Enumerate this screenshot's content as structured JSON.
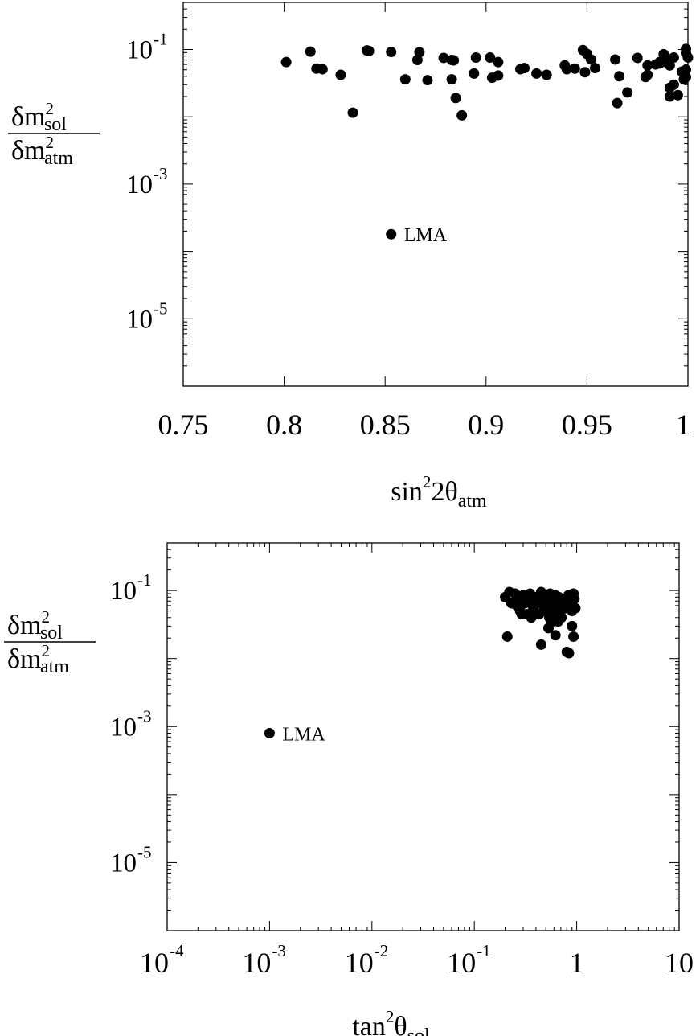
{
  "chart_data": [
    {
      "type": "scatter",
      "xlabel": "sin²2θ_atm",
      "xlabel_parts": {
        "base": "sin",
        "sup": "2",
        "mid": "2θ",
        "sub": "atm"
      },
      "ylabel": "δm²_sol / δm²_atm",
      "ylabel_parts": {
        "num_base": "δm",
        "num_sup": "2",
        "num_sub": "sol",
        "den_base": "δm",
        "den_sup": "2",
        "den_sub": "atm"
      },
      "xscale": "linear",
      "yscale": "log",
      "xlim": [
        0.75,
        1.0
      ],
      "ylim": [
        1e-06,
        0.5
      ],
      "x_ticks": [
        "0.75",
        "0.8",
        "0.85",
        "0.9",
        "0.95",
        "1"
      ],
      "y_ticks": [
        {
          "value": 0.1,
          "base": "10",
          "exp": "-1"
        },
        {
          "value": 0.001,
          "base": "10",
          "exp": "-3"
        },
        {
          "value": 1e-05,
          "base": "10",
          "exp": "-5"
        }
      ],
      "annotations": [
        {
          "text": "LMA",
          "x": 0.853,
          "y": 0.00018
        }
      ],
      "points": [
        [
          0.801,
          0.065
        ],
        [
          0.813,
          0.093
        ],
        [
          0.816,
          0.052
        ],
        [
          0.819,
          0.051
        ],
        [
          0.828,
          0.042
        ],
        [
          0.834,
          0.0115
        ],
        [
          0.841,
          0.097
        ],
        [
          0.842,
          0.095
        ],
        [
          0.853,
          0.092
        ],
        [
          0.86,
          0.036
        ],
        [
          0.866,
          0.07
        ],
        [
          0.867,
          0.091
        ],
        [
          0.871,
          0.035
        ],
        [
          0.879,
          0.075
        ],
        [
          0.883,
          0.07
        ],
        [
          0.883,
          0.036
        ],
        [
          0.884,
          0.069
        ],
        [
          0.885,
          0.019
        ],
        [
          0.888,
          0.0105
        ],
        [
          0.894,
          0.044
        ],
        [
          0.895,
          0.076
        ],
        [
          0.902,
          0.076
        ],
        [
          0.903,
          0.038
        ],
        [
          0.906,
          0.065
        ],
        [
          0.906,
          0.041
        ],
        [
          0.917,
          0.051
        ],
        [
          0.919,
          0.053
        ],
        [
          0.925,
          0.044
        ],
        [
          0.93,
          0.042
        ],
        [
          0.939,
          0.058
        ],
        [
          0.94,
          0.051
        ],
        [
          0.944,
          0.052
        ],
        [
          0.948,
          0.098
        ],
        [
          0.949,
          0.046
        ],
        [
          0.95,
          0.086
        ],
        [
          0.952,
          0.071
        ],
        [
          0.954,
          0.053
        ],
        [
          0.964,
          0.071
        ],
        [
          0.965,
          0.016
        ],
        [
          0.966,
          0.04
        ],
        [
          0.97,
          0.023
        ],
        [
          0.975,
          0.075
        ],
        [
          0.979,
          0.039
        ],
        [
          0.98,
          0.042
        ],
        [
          0.98,
          0.058
        ],
        [
          0.984,
          0.06
        ],
        [
          0.986,
          0.065
        ],
        [
          0.986,
          0.062
        ],
        [
          0.988,
          0.085
        ],
        [
          0.989,
          0.074
        ],
        [
          0.99,
          0.063
        ],
        [
          0.99,
          0.07
        ],
        [
          0.991,
          0.058
        ],
        [
          0.991,
          0.027
        ],
        [
          0.991,
          0.02
        ],
        [
          0.993,
          0.03
        ],
        [
          0.993,
          0.076
        ],
        [
          0.995,
          0.021
        ],
        [
          0.997,
          0.047
        ],
        [
          0.998,
          0.036
        ],
        [
          0.999,
          0.102
        ],
        [
          0.999,
          0.088
        ],
        [
          0.999,
          0.039
        ],
        [
          0.999,
          0.05
        ],
        [
          1.0,
          0.076
        ],
        [
          0.853,
          0.00018
        ]
      ]
    },
    {
      "type": "scatter",
      "xlabel": "tan²θ_sol",
      "xlabel_parts": {
        "base": "tan",
        "sup": "2",
        "mid": "θ",
        "sub": "sol"
      },
      "ylabel": "δm²_sol / δm²_atm",
      "ylabel_parts": {
        "num_base": "δm",
        "num_sup": "2",
        "num_sub": "sol",
        "den_base": "δm",
        "den_sup": "2",
        "den_sub": "atm"
      },
      "xscale": "log",
      "yscale": "log",
      "xlim": [
        0.0001,
        10
      ],
      "ylim": [
        1e-06,
        0.5
      ],
      "x_ticks": [
        {
          "value": 0.0001,
          "base": "10",
          "exp": "-4"
        },
        {
          "value": 0.001,
          "base": "10",
          "exp": "-3"
        },
        {
          "value": 0.01,
          "base": "10",
          "exp": "-2"
        },
        {
          "value": 0.1,
          "base": "10",
          "exp": "-1"
        },
        {
          "value": 1,
          "base": "1",
          "exp": ""
        },
        {
          "value": 10,
          "base": "10",
          "exp": ""
        }
      ],
      "y_ticks": [
        {
          "value": 0.1,
          "base": "10",
          "exp": "-1"
        },
        {
          "value": 0.001,
          "base": "10",
          "exp": "-3"
        },
        {
          "value": 1e-05,
          "base": "10",
          "exp": "-5"
        }
      ],
      "annotations": [
        {
          "text": "LMA",
          "x": 0.001,
          "y": 0.0008
        }
      ],
      "points": [
        [
          0.2,
          0.08
        ],
        [
          0.22,
          0.095
        ],
        [
          0.23,
          0.065
        ],
        [
          0.25,
          0.09
        ],
        [
          0.26,
          0.06
        ],
        [
          0.27,
          0.075
        ],
        [
          0.28,
          0.05
        ],
        [
          0.3,
          0.085
        ],
        [
          0.31,
          0.065
        ],
        [
          0.33,
          0.045
        ],
        [
          0.34,
          0.075
        ],
        [
          0.35,
          0.09
        ],
        [
          0.37,
          0.06
        ],
        [
          0.38,
          0.05
        ],
        [
          0.4,
          0.08
        ],
        [
          0.42,
          0.07
        ],
        [
          0.43,
          0.045
        ],
        [
          0.45,
          0.095
        ],
        [
          0.47,
          0.06
        ],
        [
          0.48,
          0.085
        ],
        [
          0.5,
          0.05
        ],
        [
          0.52,
          0.07
        ],
        [
          0.54,
          0.04
        ],
        [
          0.55,
          0.09
        ],
        [
          0.57,
          0.06
        ],
        [
          0.58,
          0.075
        ],
        [
          0.6,
          0.045
        ],
        [
          0.62,
          0.085
        ],
        [
          0.63,
          0.055
        ],
        [
          0.65,
          0.07
        ],
        [
          0.67,
          0.08
        ],
        [
          0.7,
          0.05
        ],
        [
          0.72,
          0.065
        ],
        [
          0.75,
          0.075
        ],
        [
          0.78,
          0.055
        ],
        [
          0.8,
          0.07
        ],
        [
          0.83,
          0.085
        ],
        [
          0.86,
          0.06
        ],
        [
          0.9,
          0.05
        ],
        [
          0.93,
          0.09
        ],
        [
          0.95,
          0.075
        ],
        [
          0.97,
          0.055
        ],
        [
          0.21,
          0.021
        ],
        [
          0.45,
          0.016
        ],
        [
          0.62,
          0.022
        ],
        [
          0.8,
          0.0125
        ],
        [
          0.84,
          0.012
        ],
        [
          0.9,
          0.03
        ],
        [
          0.93,
          0.021
        ],
        [
          0.56,
          0.034
        ],
        [
          0.66,
          0.035
        ],
        [
          0.53,
          0.028
        ],
        [
          0.36,
          0.04
        ],
        [
          0.29,
          0.045
        ],
        [
          0.71,
          0.04
        ],
        [
          0.001,
          0.0008
        ]
      ]
    }
  ]
}
